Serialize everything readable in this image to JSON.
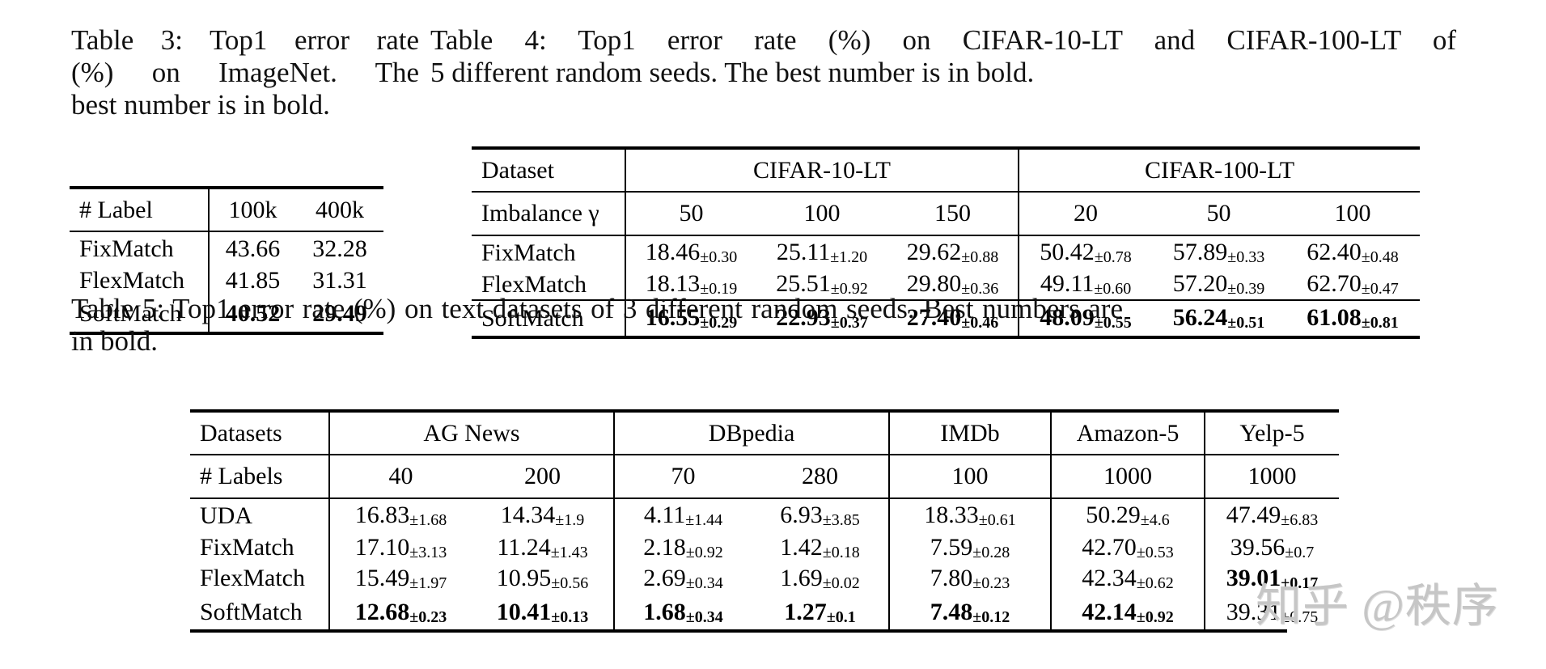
{
  "watermark": {
    "text": "知乎 @秩序",
    "color": "#c6c6c6"
  },
  "rule_color": "#000000",
  "table3": {
    "caption_lines": [
      "Table 3: Top1 error rate",
      "(%) on ImageNet. The",
      "best number is in bold."
    ],
    "header": {
      "label": "# Label",
      "cols": [
        "100k",
        "400k"
      ]
    },
    "rows": [
      {
        "method": "FixMatch",
        "cells": [
          {
            "v": "43.66"
          },
          {
            "v": "32.28"
          }
        ]
      },
      {
        "method": "FlexMatch",
        "cells": [
          {
            "v": "41.85"
          },
          {
            "v": "31.31"
          }
        ]
      },
      {
        "method": "SoftMatch",
        "cells": [
          {
            "v": "40.52",
            "bold": true
          },
          {
            "v": "29.49",
            "bold": true
          }
        ]
      }
    ]
  },
  "table4": {
    "caption_lines": [
      "Table 4: Top1 error rate (%) on CIFAR-10-LT and CIFAR-100-LT of",
      "5 different random seeds. The best number is in bold."
    ],
    "group_row": {
      "label": "Dataset",
      "groups": [
        {
          "label": "CIFAR-10-LT",
          "span": 3
        },
        {
          "label": "CIFAR-100-LT",
          "span": 3
        }
      ]
    },
    "header": {
      "label": "Imbalance γ",
      "cols": [
        "50",
        "100",
        "150",
        "20",
        "50",
        "100"
      ]
    },
    "rows": [
      {
        "method": "FixMatch",
        "cells": [
          {
            "v": "18.46",
            "pm": "0.30"
          },
          {
            "v": "25.11",
            "pm": "1.20"
          },
          {
            "v": "29.62",
            "pm": "0.88"
          },
          {
            "v": "50.42",
            "pm": "0.78"
          },
          {
            "v": "57.89",
            "pm": "0.33"
          },
          {
            "v": "62.40",
            "pm": "0.48"
          }
        ]
      },
      {
        "method": "FlexMatch",
        "cells": [
          {
            "v": "18.13",
            "pm": "0.19"
          },
          {
            "v": "25.51",
            "pm": "0.92"
          },
          {
            "v": "29.80",
            "pm": "0.36"
          },
          {
            "v": "49.11",
            "pm": "0.60"
          },
          {
            "v": "57.20",
            "pm": "0.39"
          },
          {
            "v": "62.70",
            "pm": "0.47"
          }
        ]
      },
      {
        "method": "SoftMatch",
        "rule_above": true,
        "cells": [
          {
            "v": "16.55",
            "pm": "0.29",
            "bold": true
          },
          {
            "v": "22.93",
            "pm": "0.37",
            "bold": true
          },
          {
            "v": "27.40",
            "pm": "0.46",
            "bold": true
          },
          {
            "v": "48.09",
            "pm": "0.55",
            "bold": true
          },
          {
            "v": "56.24",
            "pm": "0.51",
            "bold": true
          },
          {
            "v": "61.08",
            "pm": "0.81",
            "bold": true
          }
        ]
      }
    ]
  },
  "table5": {
    "caption_lines": [
      "Table 5: Top1 error rate (%) on text datasets of 3 different random seeds. Best numbers are in bold."
    ],
    "group_row": {
      "label": "Datasets",
      "groups": [
        {
          "label": "AG News",
          "span": 2
        },
        {
          "label": "DBpedia",
          "span": 2
        },
        {
          "label": "IMDb",
          "span": 1
        },
        {
          "label": "Amazon-5",
          "span": 1
        },
        {
          "label": "Yelp-5",
          "span": 1
        }
      ]
    },
    "header": {
      "label": "# Labels",
      "cols": [
        "40",
        "200",
        "70",
        "280",
        "100",
        "1000",
        "1000"
      ]
    },
    "rows": [
      {
        "method": "UDA",
        "cells": [
          {
            "v": "16.83",
            "pm": "1.68"
          },
          {
            "v": "14.34",
            "pm": "1.9"
          },
          {
            "v": "4.11",
            "pm": "1.44"
          },
          {
            "v": "6.93",
            "pm": "3.85"
          },
          {
            "v": "18.33",
            "pm": "0.61"
          },
          {
            "v": "50.29",
            "pm": "4.6"
          },
          {
            "v": "47.49",
            "pm": "6.83"
          }
        ]
      },
      {
        "method": "FixMatch",
        "cells": [
          {
            "v": "17.10",
            "pm": "3.13"
          },
          {
            "v": "11.24",
            "pm": "1.43"
          },
          {
            "v": "2.18",
            "pm": "0.92"
          },
          {
            "v": "1.42",
            "pm": "0.18"
          },
          {
            "v": "7.59",
            "pm": "0.28"
          },
          {
            "v": "42.70",
            "pm": "0.53"
          },
          {
            "v": "39.56",
            "pm": "0.7"
          }
        ]
      },
      {
        "method": "FlexMatch",
        "cells": [
          {
            "v": "15.49",
            "pm": "1.97"
          },
          {
            "v": "10.95",
            "pm": "0.56"
          },
          {
            "v": "2.69",
            "pm": "0.34"
          },
          {
            "v": "1.69",
            "pm": "0.02"
          },
          {
            "v": "7.80",
            "pm": "0.23"
          },
          {
            "v": "42.34",
            "pm": "0.62"
          },
          {
            "v": "39.01",
            "pm": "0.17",
            "bold": true
          }
        ]
      },
      {
        "method": "SoftMatch",
        "cells": [
          {
            "v": "12.68",
            "pm": "0.23",
            "bold": true
          },
          {
            "v": "10.41",
            "pm": "0.13",
            "bold": true
          },
          {
            "v": "1.68",
            "pm": "0.34",
            "bold": true
          },
          {
            "v": "1.27",
            "pm": "0.1",
            "bold": true
          },
          {
            "v": "7.48",
            "pm": "0.12",
            "bold": true
          },
          {
            "v": "42.14",
            "pm": "0.92",
            "bold": true
          },
          {
            "v": "39.31",
            "pm": "0.75"
          }
        ]
      }
    ]
  }
}
